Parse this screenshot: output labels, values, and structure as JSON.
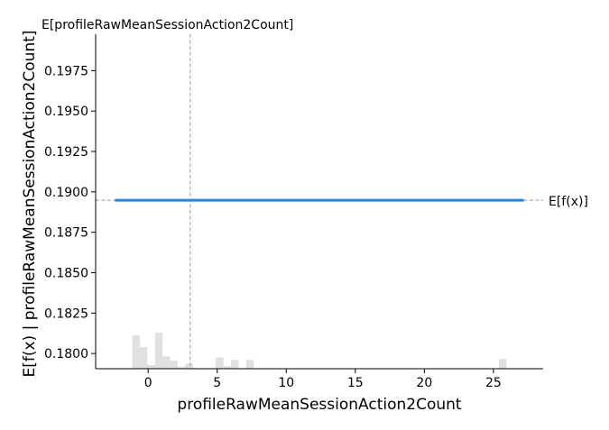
{
  "chart_data": {
    "type": "line",
    "xlabel": "profileRawMeanSessionAction2Count",
    "ylabel": "E[f(x) | profileRawMeanSessionAction2Count]",
    "xlim": [
      -3.8,
      28.6
    ],
    "ylim": [
      0.17906,
      0.19975
    ],
    "x_ticks": [
      0,
      5,
      10,
      15,
      20,
      25
    ],
    "x_tick_labels": [
      "0",
      "5",
      "10",
      "15",
      "20",
      "25"
    ],
    "y_ticks": [
      0.18,
      0.1825,
      0.185,
      0.1875,
      0.19,
      0.1925,
      0.195,
      0.1975
    ],
    "y_tick_labels": [
      "0.1800",
      "0.1825",
      "0.1850",
      "0.1875",
      "0.1900",
      "0.1925",
      "0.1950",
      "0.1975"
    ],
    "series": [
      {
        "color": "#1e88e5",
        "x": [
          -2.4,
          27.2
        ],
        "y": [
          0.18948,
          0.18948
        ]
      }
    ],
    "expected_value": {
      "x": 3.05,
      "label": "E[profileRawMeanSessionAction2Count]"
    },
    "expected_output": {
      "y": 0.18948,
      "label": "E[f(x)]"
    },
    "histogram": {
      "color": "#e0e0e0",
      "bin_width": 0.55,
      "bins": [
        {
          "x": -1.15,
          "h": 0.1
        },
        {
          "x": -0.6,
          "h": 0.0646
        },
        {
          "x": -0.05,
          "h": 0.0108
        },
        {
          "x": 0.5,
          "h": 0.1077
        },
        {
          "x": 1.05,
          "h": 0.0369
        },
        {
          "x": 1.6,
          "h": 0.0246
        },
        {
          "x": 2.15,
          "h": 0.0046
        },
        {
          "x": 2.7,
          "h": 0.0154
        },
        {
          "x": 4.9,
          "h": 0.0338
        },
        {
          "x": 5.45,
          "h": 0.0077
        },
        {
          "x": 6.0,
          "h": 0.0262
        },
        {
          "x": 7.1,
          "h": 0.0262
        },
        {
          "x": 25.4,
          "h": 0.0292
        }
      ]
    },
    "grid": false,
    "legend": "none"
  }
}
